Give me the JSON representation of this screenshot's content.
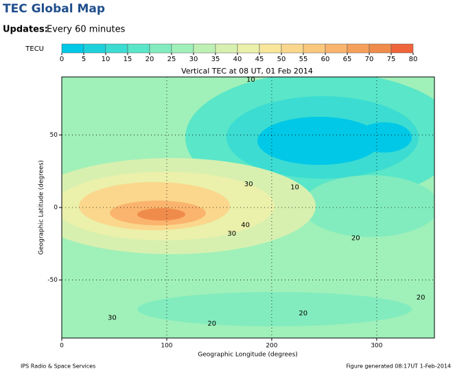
{
  "header": {
    "title": "TEC Global Map",
    "updates_label": "Updates:",
    "updates_value": "Every 60 minutes"
  },
  "colorbar": {
    "label": "TECU",
    "ticks": [
      0,
      5,
      10,
      15,
      20,
      25,
      30,
      35,
      40,
      45,
      50,
      55,
      60,
      65,
      70,
      75,
      80
    ],
    "colors": [
      "#00c8e6",
      "#1ed2dc",
      "#3cdcd2",
      "#5ae6c8",
      "#82ecbe",
      "#a0f0b9",
      "#bef0b4",
      "#d7f0b0",
      "#ebf0aa",
      "#f8e69b",
      "#fad78c",
      "#fac87d",
      "#fab46e",
      "#f5a05a",
      "#f08c4b",
      "#f0643c"
    ]
  },
  "map": {
    "title": "Vertical TEC at 08 UT, 01 Feb 2014",
    "xlabel": "Geographic Longitude (degrees)",
    "ylabel": "Geographic Latitude (degrees)",
    "xlim": [
      0,
      355
    ],
    "ylim": [
      -90,
      90
    ],
    "xticks": [
      0,
      100,
      200,
      300
    ],
    "yticks": [
      -50,
      0,
      50
    ],
    "contour_labels": [
      {
        "value": 10,
        "lon": 180,
        "lat": 88
      },
      {
        "value": 10,
        "lon": 222,
        "lat": 14
      },
      {
        "value": 30,
        "lon": 178,
        "lat": 16
      },
      {
        "value": 40,
        "lon": 175,
        "lat": -12
      },
      {
        "value": 30,
        "lon": 162,
        "lat": -18
      },
      {
        "value": 20,
        "lon": 280,
        "lat": -21
      },
      {
        "value": 20,
        "lon": 342,
        "lat": -62
      },
      {
        "value": 20,
        "lon": 230,
        "lat": -73
      },
      {
        "value": 30,
        "lon": 48,
        "lat": -76
      },
      {
        "value": 20,
        "lon": 143,
        "lat": -80
      }
    ]
  },
  "footer": {
    "left": "IPS Radio & Space Services",
    "right": "Figure generated 08:17UT 1-Feb-2014"
  }
}
